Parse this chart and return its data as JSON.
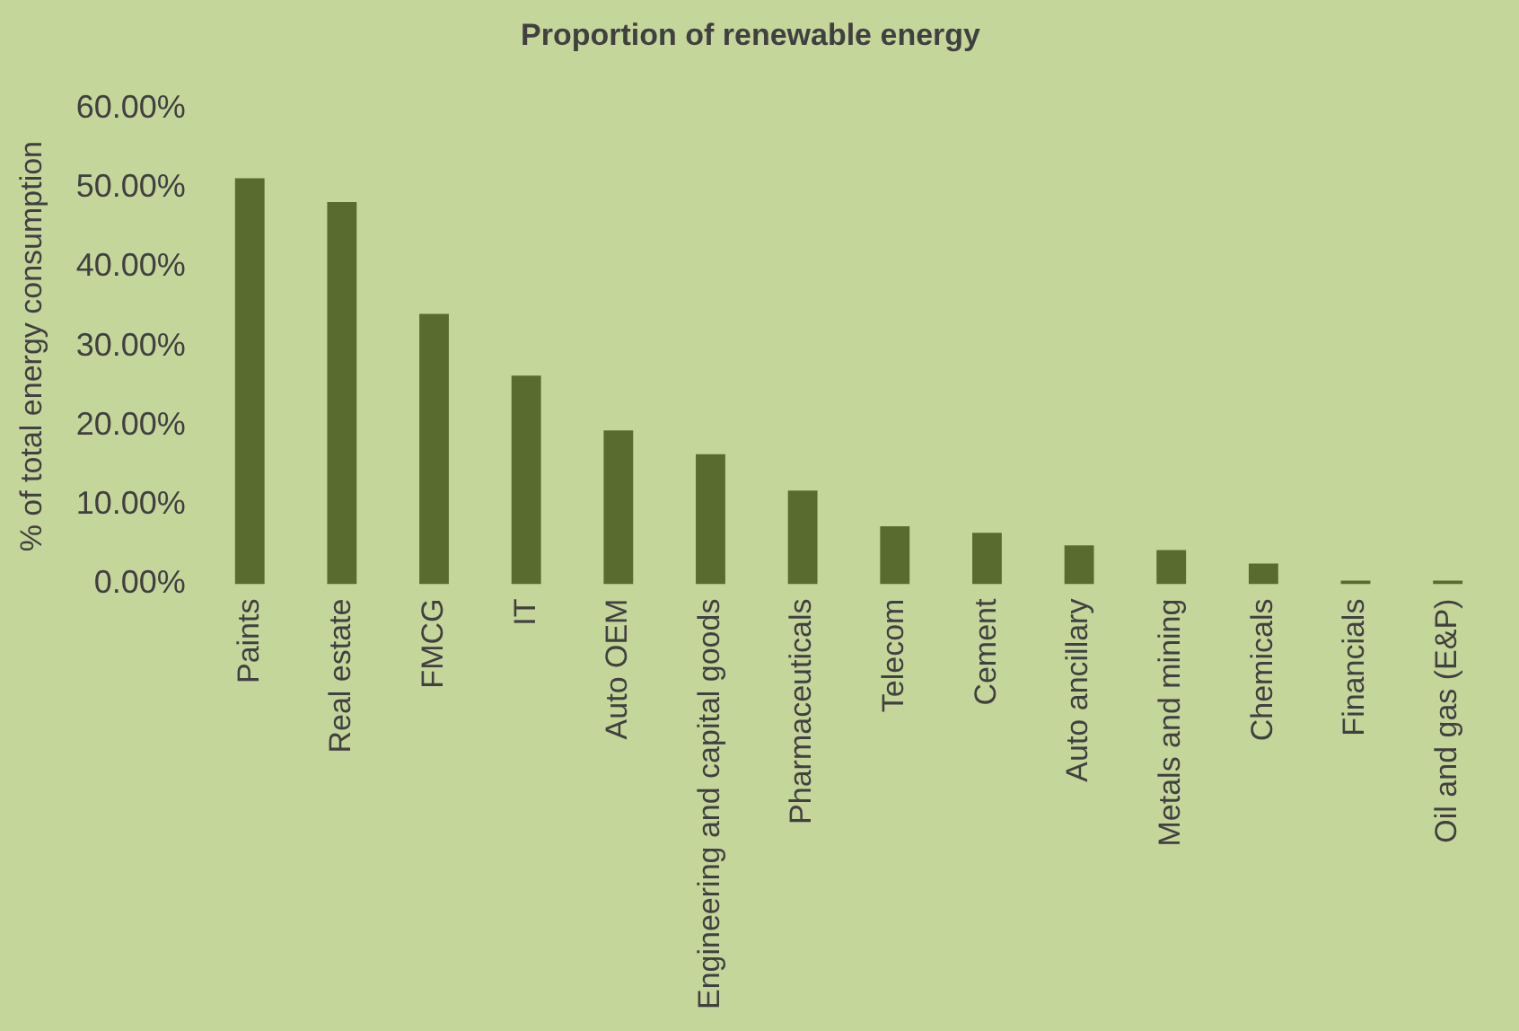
{
  "chart_data": {
    "type": "bar",
    "title": "Proportion of renewable energy",
    "ylabel": "% of total energy consumption",
    "categories": [
      "Paints",
      "Real estate",
      "FMCG",
      "IT",
      "Auto OEM",
      "Engineering and capital goods",
      "Pharmaceuticals",
      "Telecom",
      "Cement",
      "Auto ancillary",
      "Metals and mining",
      "Chemicals",
      "Financials",
      "Oil and gas (E&P)"
    ],
    "values": [
      51.2,
      48.2,
      34.1,
      26.3,
      19.4,
      16.4,
      11.8,
      7.3,
      6.5,
      4.9,
      4.3,
      2.6,
      0.2,
      0.2
    ],
    "color": "#596b2e",
    "ylim": [
      0,
      60
    ],
    "yticks": [
      {
        "value": 0,
        "label": "0.00%"
      },
      {
        "value": 10,
        "label": "10.00%"
      },
      {
        "value": 20,
        "label": "20.00%"
      },
      {
        "value": 30,
        "label": "30.00%"
      },
      {
        "value": 40,
        "label": "40.00%"
      },
      {
        "value": 50,
        "label": "50.00%"
      },
      {
        "value": 60,
        "label": "60.00%"
      }
    ],
    "grid": false,
    "legend": false
  }
}
